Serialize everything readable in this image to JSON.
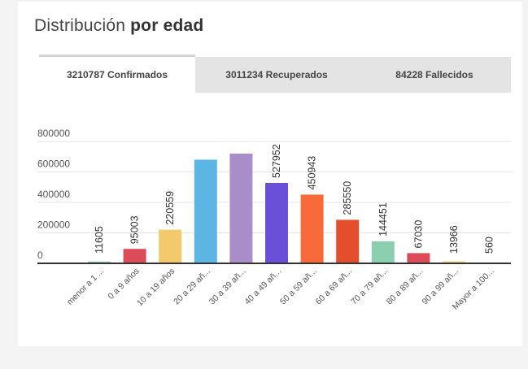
{
  "header": {
    "title_regular": "Distribución",
    "title_bold": "por edad"
  },
  "tabs": [
    {
      "label": "3210787 Confirmados",
      "active": true
    },
    {
      "label": "3011234 Recuperados",
      "active": false
    },
    {
      "label": "84228 Fallecidos",
      "active": false
    }
  ],
  "chart_data": {
    "type": "bar",
    "categories": [
      "menor a 1 ...",
      "0 a 9 años",
      "10 a 19 años",
      "20 a 29 añ...",
      "30 a 39 añ...",
      "40 a 49 añ...",
      "50 a 59 añ...",
      "60 a 69 añ...",
      "70 a 79 añ...",
      "80 a 89 añ...",
      "90 a 99 añ...",
      "Mayor a 100..."
    ],
    "values": [
      11605,
      95003,
      220559,
      680000,
      720000,
      527952,
      450943,
      285550,
      144451,
      67030,
      13966,
      560
    ],
    "data_labels": [
      "11605",
      "95003",
      "220559",
      "",
      "",
      "527952",
      "450943",
      "285550",
      "144451",
      "67030",
      "13966",
      "560"
    ],
    "colors": [
      "#8ccfb0",
      "#dc4b5a",
      "#f2c96b",
      "#5bb6e6",
      "#a98dc8",
      "#6a4fd9",
      "#f96a3a",
      "#e44e2c",
      "#8ccfb0",
      "#dc4b5a",
      "#f2dc8c",
      "#8ccfb0"
    ],
    "yticks": [
      0,
      200000,
      400000,
      600000,
      800000
    ],
    "ytick_labels": [
      "0",
      "200000",
      "400000",
      "600000",
      "800000"
    ],
    "ylim": [
      0,
      800000
    ],
    "grid": true,
    "legend": "none"
  }
}
